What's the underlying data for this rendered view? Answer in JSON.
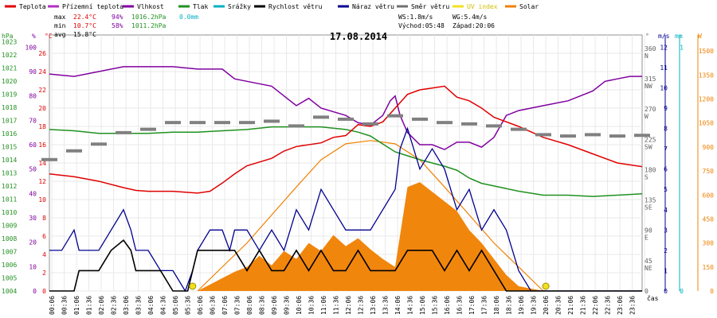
{
  "chart_data": {
    "type": "line",
    "title": "17.08.2014",
    "legend": [
      {
        "label": "Teplota",
        "color": "#e00000"
      },
      {
        "label": "Přízemní teplota",
        "color": "#b030c0"
      },
      {
        "label": "Vlhkost",
        "color": "#8000a0"
      },
      {
        "label": "Tlak",
        "color": "#209020"
      },
      {
        "label": "Srážky",
        "color": "#00b0c0"
      },
      {
        "label": "Rychlost větru",
        "color": "#000000"
      },
      {
        "label": "Náraz větru",
        "color": "#000090"
      },
      {
        "label": "Směr větru",
        "color": "#707070"
      },
      {
        "label": "UV index",
        "color": "#f0e020"
      },
      {
        "label": "Solar",
        "color": "#f08000"
      }
    ],
    "stats": {
      "max_label": "max",
      "max_temp": "22.4°C",
      "max_hum": "94%",
      "max_press": "1016.2hPa",
      "rain": "0.0mm",
      "min_label": "min",
      "min_temp": "10.7°C",
      "min_hum": "58%",
      "min_press": "1011.2hPa",
      "avg_label": "avg",
      "avg_temp": "15.8°C",
      "ws": "WS:1.8m/s",
      "wg": "WG:5.4m/s",
      "sunrise": "Východ:05:48",
      "sunset": "Západ:20:06"
    },
    "axes_units": {
      "hpa": "hPa",
      "pct": "%",
      "temp": "°C",
      "deg": "°",
      "ms": "m/s",
      "mm": "mm",
      "w": "W",
      "time": "čas"
    },
    "x_ticks": [
      "00:06",
      "00:36",
      "01:06",
      "01:36",
      "02:06",
      "02:36",
      "03:06",
      "03:36",
      "04:06",
      "04:36",
      "05:06",
      "05:36",
      "06:06",
      "06:36",
      "07:06",
      "07:36",
      "08:06",
      "08:36",
      "09:06",
      "09:36",
      "10:06",
      "10:36",
      "11:06",
      "11:36",
      "12:06",
      "12:36",
      "13:06",
      "13:36",
      "14:06",
      "14:36",
      "15:06",
      "15:36",
      "16:06",
      "16:36",
      "17:06",
      "17:36",
      "18:06",
      "18:36",
      "19:06",
      "19:36",
      "20:06",
      "20:36",
      "21:06",
      "21:36",
      "22:06",
      "22:36",
      "23:06",
      "23:36"
    ],
    "hpa_ticks": [
      "1023",
      "1022",
      "1021",
      "1020",
      "1019",
      "1018",
      "1017",
      "1016",
      "1015",
      "1014",
      "1013",
      "1012",
      "1011",
      "1010",
      "1009",
      "1008",
      "1007",
      "1006",
      "1005",
      "1004"
    ],
    "pct_ticks": [
      "100",
      "90",
      "80",
      "70",
      "60",
      "50",
      "40",
      "30",
      "20",
      "10",
      "0"
    ],
    "temp_ticks": [
      "26",
      "24",
      "22",
      "20",
      "18",
      "16",
      "14",
      "12",
      "10",
      "8",
      "6",
      "4",
      "2",
      "0"
    ],
    "dir_ticks": [
      "360\nN",
      "315\nNW",
      "270\nW",
      "225\nSW",
      "180\nS",
      "135\nSE",
      "90\nE",
      "45\nNE",
      "0"
    ],
    "ms_ticks": [
      "12",
      "11",
      "10",
      "9",
      "8",
      "7",
      "6",
      "5",
      "4",
      "3",
      "2",
      "1",
      "0"
    ],
    "mm_ticks": [
      "1",
      "0"
    ],
    "w_ticks": [
      "1500",
      "1350",
      "1200",
      "1050",
      "900",
      "750",
      "600",
      "450",
      "300",
      "150",
      "0"
    ],
    "temperature": [
      [
        0,
        12.8
      ],
      [
        1,
        12.5
      ],
      [
        2,
        12.0
      ],
      [
        3,
        11.3
      ],
      [
        3.5,
        11.0
      ],
      [
        4,
        10.9
      ],
      [
        5,
        10.9
      ],
      [
        6,
        10.7
      ],
      [
        6.5,
        10.9
      ],
      [
        7,
        11.8
      ],
      [
        7.5,
        12.8
      ],
      [
        8,
        13.7
      ],
      [
        9,
        14.5
      ],
      [
        9.5,
        15.3
      ],
      [
        10,
        15.8
      ],
      [
        11,
        16.2
      ],
      [
        11.5,
        16.8
      ],
      [
        12,
        17.0
      ],
      [
        12.5,
        18.2
      ],
      [
        13,
        18.0
      ],
      [
        13.5,
        18.5
      ],
      [
        14,
        20.0
      ],
      [
        14.5,
        21.5
      ],
      [
        15,
        22.0
      ],
      [
        15.5,
        22.2
      ],
      [
        16,
        22.4
      ],
      [
        16.5,
        21.2
      ],
      [
        17,
        20.8
      ],
      [
        17.5,
        20.0
      ],
      [
        18,
        19.0
      ],
      [
        19,
        18.0
      ],
      [
        20,
        16.8
      ],
      [
        21,
        16.0
      ],
      [
        22,
        15.0
      ],
      [
        23,
        14.0
      ],
      [
        24,
        13.6
      ]
    ],
    "humidity": [
      [
        0,
        89
      ],
      [
        1,
        88
      ],
      [
        2,
        90
      ],
      [
        3,
        92
      ],
      [
        4,
        92
      ],
      [
        5,
        92
      ],
      [
        6,
        91
      ],
      [
        6.5,
        91
      ],
      [
        7,
        91
      ],
      [
        7.5,
        87
      ],
      [
        8,
        86
      ],
      [
        9,
        84
      ],
      [
        9.5,
        80
      ],
      [
        10,
        76
      ],
      [
        10.5,
        79
      ],
      [
        11,
        75
      ],
      [
        12,
        72
      ],
      [
        12.5,
        69
      ],
      [
        13,
        68
      ],
      [
        13.5,
        72
      ],
      [
        13.8,
        78
      ],
      [
        14,
        80
      ],
      [
        14.2,
        72
      ],
      [
        14.5,
        65
      ],
      [
        15,
        60
      ],
      [
        15.5,
        60
      ],
      [
        16,
        58
      ],
      [
        16.5,
        61
      ],
      [
        17,
        61
      ],
      [
        17.5,
        59
      ],
      [
        18,
        63
      ],
      [
        18.5,
        72
      ],
      [
        19,
        74
      ],
      [
        20,
        76
      ],
      [
        21,
        78
      ],
      [
        22,
        82
      ],
      [
        22.5,
        86
      ],
      [
        23,
        87
      ],
      [
        23.5,
        88
      ],
      [
        24,
        88
      ]
    ],
    "pressure": [
      [
        0,
        1016.3
      ],
      [
        1,
        1016.2
      ],
      [
        2,
        1016.0
      ],
      [
        3,
        1016.0
      ],
      [
        4,
        1016.0
      ],
      [
        5,
        1016.1
      ],
      [
        6,
        1016.1
      ],
      [
        7,
        1016.2
      ],
      [
        8,
        1016.3
      ],
      [
        9,
        1016.5
      ],
      [
        10,
        1016.5
      ],
      [
        11,
        1016.5
      ],
      [
        12,
        1016.3
      ],
      [
        12.5,
        1016.1
      ],
      [
        13,
        1015.8
      ],
      [
        13.5,
        1015.2
      ],
      [
        14,
        1014.6
      ],
      [
        15,
        1014.0
      ],
      [
        16,
        1013.5
      ],
      [
        16.5,
        1013.2
      ],
      [
        17,
        1012.6
      ],
      [
        17.5,
        1012.2
      ],
      [
        18,
        1012.0
      ],
      [
        19,
        1011.6
      ],
      [
        20,
        1011.3
      ],
      [
        21,
        1011.3
      ],
      [
        22,
        1011.2
      ],
      [
        23,
        1011.3
      ],
      [
        24,
        1011.4
      ]
    ],
    "wind_speed": [
      [
        0,
        0
      ],
      [
        1,
        0
      ],
      [
        1.2,
        1
      ],
      [
        2,
        1
      ],
      [
        2.5,
        2
      ],
      [
        3,
        2.5
      ],
      [
        3.3,
        2
      ],
      [
        3.5,
        1
      ],
      [
        4.5,
        1
      ],
      [
        5,
        0
      ],
      [
        5.6,
        0
      ],
      [
        5.8,
        1
      ],
      [
        6,
        2
      ],
      [
        7.5,
        2
      ],
      [
        8,
        1
      ],
      [
        8.5,
        2
      ],
      [
        9,
        1
      ],
      [
        9.5,
        1
      ],
      [
        10,
        2
      ],
      [
        10.5,
        1
      ],
      [
        11,
        2
      ],
      [
        11.5,
        1
      ],
      [
        12,
        1
      ],
      [
        12.5,
        2
      ],
      [
        13,
        1
      ],
      [
        14,
        1
      ],
      [
        14.5,
        2
      ],
      [
        15,
        2
      ],
      [
        15.5,
        2
      ],
      [
        16,
        1
      ],
      [
        16.5,
        2
      ],
      [
        17,
        1
      ],
      [
        17.5,
        2
      ],
      [
        18,
        1
      ],
      [
        18.5,
        0
      ],
      [
        19,
        0
      ],
      [
        19.5,
        0
      ],
      [
        20,
        0
      ],
      [
        24,
        0
      ]
    ],
    "wind_gust": [
      [
        0,
        2
      ],
      [
        0.5,
        2
      ],
      [
        1,
        3
      ],
      [
        1.2,
        2
      ],
      [
        2,
        2
      ],
      [
        2.5,
        3
      ],
      [
        3,
        4
      ],
      [
        3.3,
        3
      ],
      [
        3.5,
        2
      ],
      [
        4,
        2
      ],
      [
        4.5,
        1
      ],
      [
        5,
        1
      ],
      [
        5.5,
        0
      ],
      [
        5.8,
        1
      ],
      [
        6,
        2
      ],
      [
        6.5,
        3
      ],
      [
        7,
        3
      ],
      [
        7.3,
        2
      ],
      [
        7.5,
        3
      ],
      [
        8,
        3
      ],
      [
        8.5,
        2
      ],
      [
        9,
        3
      ],
      [
        9.5,
        2
      ],
      [
        10,
        4
      ],
      [
        10.5,
        3
      ],
      [
        11,
        5
      ],
      [
        11.5,
        4
      ],
      [
        12,
        3
      ],
      [
        12.5,
        3
      ],
      [
        13,
        3
      ],
      [
        13.5,
        4
      ],
      [
        14,
        5
      ],
      [
        14.2,
        7
      ],
      [
        14.5,
        8
      ],
      [
        15,
        6
      ],
      [
        15.5,
        7
      ],
      [
        16,
        6
      ],
      [
        16.5,
        4
      ],
      [
        17,
        5
      ],
      [
        17.5,
        3
      ],
      [
        18,
        4
      ],
      [
        18.5,
        3
      ],
      [
        19,
        1
      ],
      [
        19.5,
        0
      ],
      [
        20,
        0
      ],
      [
        24,
        0
      ]
    ],
    "solar_curve": [
      [
        6,
        0
      ],
      [
        8,
        300
      ],
      [
        10,
        650
      ],
      [
        11,
        820
      ],
      [
        12,
        920
      ],
      [
        13,
        940
      ],
      [
        14,
        920
      ],
      [
        15,
        820
      ],
      [
        16,
        650
      ],
      [
        18,
        300
      ],
      [
        20,
        0
      ]
    ],
    "solar_measured": [
      [
        6,
        0
      ],
      [
        6.5,
        40
      ],
      [
        7,
        80
      ],
      [
        7.5,
        120
      ],
      [
        8,
        150
      ],
      [
        8.5,
        220
      ],
      [
        9,
        160
      ],
      [
        9.5,
        250
      ],
      [
        10,
        200
      ],
      [
        10.5,
        300
      ],
      [
        11,
        250
      ],
      [
        11.5,
        350
      ],
      [
        12,
        280
      ],
      [
        12.5,
        330
      ],
      [
        13,
        260
      ],
      [
        13.5,
        200
      ],
      [
        14,
        150
      ],
      [
        14.5,
        650
      ],
      [
        15,
        680
      ],
      [
        15.5,
        620
      ],
      [
        16,
        560
      ],
      [
        16.5,
        500
      ],
      [
        17,
        380
      ],
      [
        17.5,
        300
      ],
      [
        18,
        200
      ],
      [
        18.5,
        100
      ],
      [
        19,
        30
      ],
      [
        20,
        0
      ]
    ],
    "wind_direction_points": [
      [
        0,
        195
      ],
      [
        1,
        208
      ],
      [
        2,
        218
      ],
      [
        3,
        235
      ],
      [
        4,
        240
      ],
      [
        5,
        250
      ],
      [
        6,
        250
      ],
      [
        7,
        250
      ],
      [
        8,
        250
      ],
      [
        9,
        252
      ],
      [
        10,
        245
      ],
      [
        11,
        258
      ],
      [
        12,
        255
      ],
      [
        13,
        248
      ],
      [
        14,
        260
      ],
      [
        15,
        255
      ],
      [
        16,
        250
      ],
      [
        17,
        248
      ],
      [
        18,
        245
      ],
      [
        19,
        240
      ],
      [
        20,
        232
      ],
      [
        21,
        230
      ],
      [
        22,
        232
      ],
      [
        23,
        230
      ],
      [
        24,
        231
      ]
    ]
  }
}
